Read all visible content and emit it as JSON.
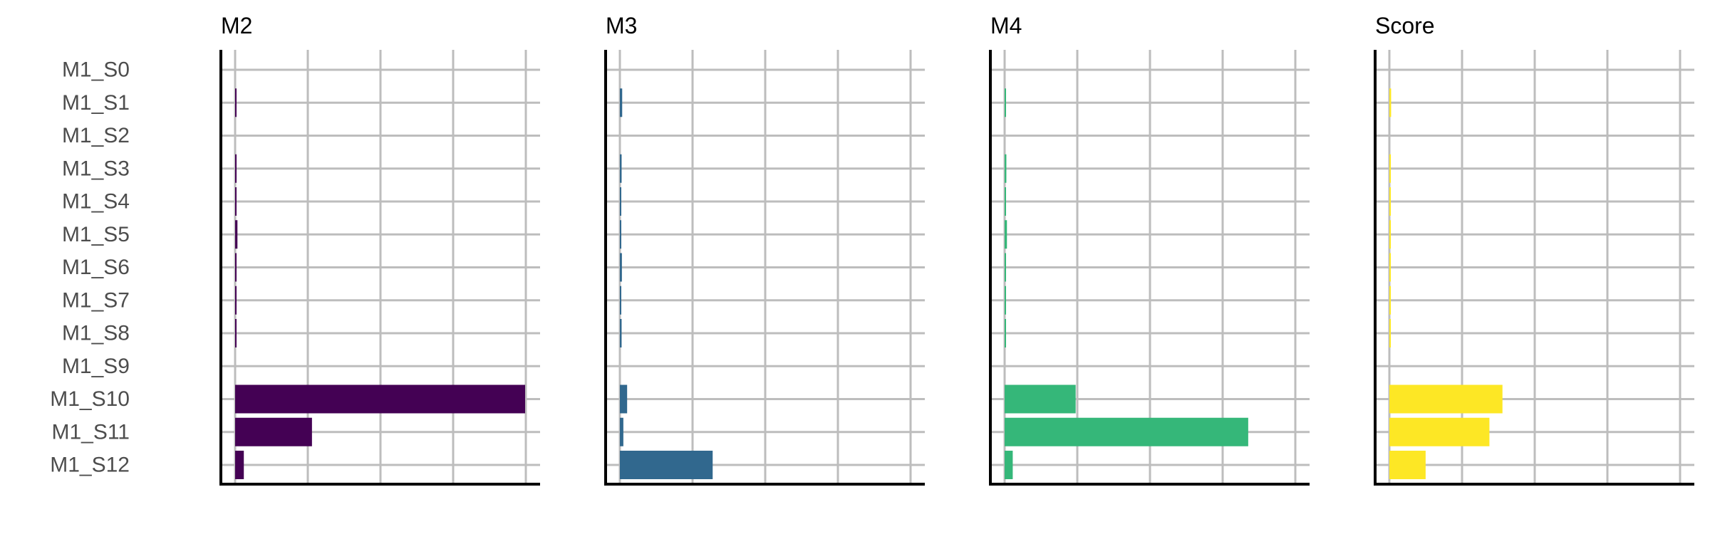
{
  "chart_data": {
    "type": "bar",
    "orientation": "horizontal",
    "layout": "facets",
    "grid": true,
    "legend": "none",
    "categories": [
      "M1_S0",
      "M1_S1",
      "M1_S2",
      "M1_S3",
      "M1_S4",
      "M1_S5",
      "M1_S6",
      "M1_S7",
      "M1_S8",
      "M1_S9",
      "M1_S10",
      "M1_S11",
      "M1_S12"
    ],
    "panels": [
      {
        "title": "M2",
        "color": "#440154",
        "xlim": [
          0,
          1.05
        ],
        "values": [
          0,
          0.004,
          0,
          0.005,
          0.002,
          0.008,
          0.003,
          0.002,
          0.004,
          0,
          1.0,
          0.265,
          0.03
        ]
      },
      {
        "title": "M3",
        "color": "#31688e",
        "xlim": [
          0,
          1.05
        ],
        "values": [
          0,
          0.008,
          0,
          0.006,
          0.003,
          0.004,
          0.007,
          0.003,
          0.006,
          0,
          0.025,
          0.012,
          0.32
        ]
      },
      {
        "title": "M4",
        "color": "#35b779",
        "xlim": [
          0,
          1.05
        ],
        "values": [
          0,
          0.003,
          0,
          0.006,
          0.003,
          0.008,
          0.002,
          0.002,
          0.003,
          0,
          0.245,
          0.84,
          0.028
        ]
      },
      {
        "title": "Score",
        "color": "#fde725",
        "xlim": [
          0,
          1.05
        ],
        "values": [
          0,
          0.006,
          0,
          0.005,
          0.003,
          0.005,
          0.004,
          0.003,
          0.004,
          0,
          0.39,
          0.345,
          0.125
        ]
      }
    ]
  }
}
